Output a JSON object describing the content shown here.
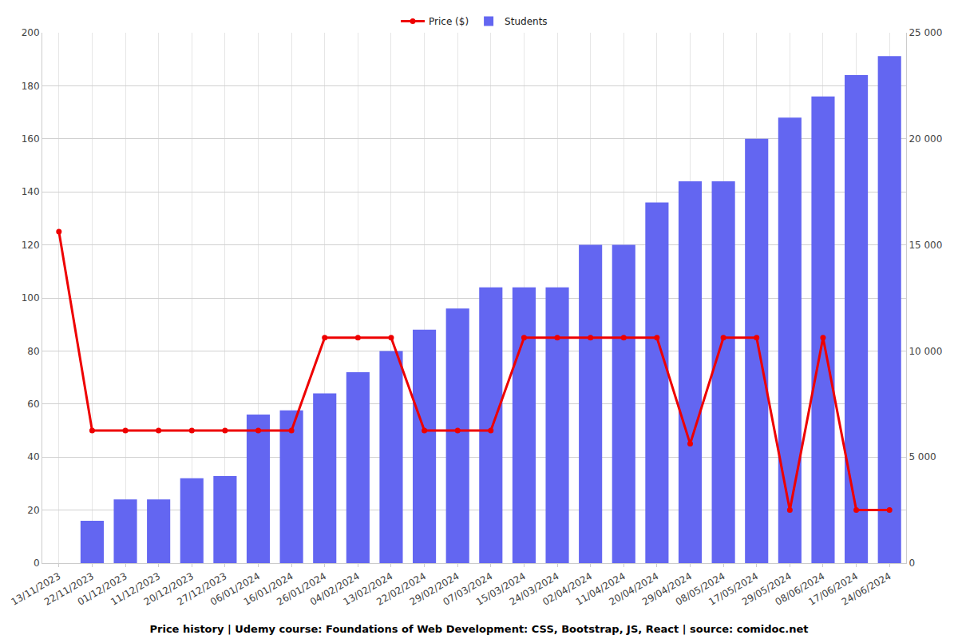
{
  "chart_data": {
    "type": "bar",
    "title": "Price history | Udemy course: Foundations of Web Development: CSS, Bootstrap, JS, React | source: comidoc.net",
    "categories": [
      "13/11/2023",
      "22/11/2023",
      "01/12/2023",
      "11/12/2023",
      "20/12/2023",
      "27/12/2023",
      "06/01/2024",
      "16/01/2024",
      "26/01/2024",
      "04/02/2024",
      "13/02/2024",
      "22/02/2024",
      "29/02/2024",
      "07/03/2024",
      "15/03/2024",
      "24/03/2024",
      "02/04/2024",
      "11/04/2024",
      "20/04/2024",
      "29/04/2024",
      "08/05/2024",
      "17/05/2024",
      "29/05/2024",
      "08/06/2024",
      "17/06/2024",
      "24/06/2024"
    ],
    "series": [
      {
        "name": "Price ($)",
        "type": "line",
        "color": "#ee0000",
        "marker": "circle",
        "values": [
          125,
          50,
          50,
          50,
          50,
          50,
          50,
          50,
          85,
          85,
          85,
          50,
          50,
          50,
          85,
          85,
          85,
          85,
          85,
          45,
          85,
          85,
          20,
          85,
          20,
          20
        ]
      },
      {
        "name": "Students",
        "type": "bar",
        "color": "#6366f1",
        "axis": "y2",
        "values": [
          null,
          2000,
          3000,
          3000,
          4000,
          4100,
          7000,
          7200,
          8000,
          9000,
          10000,
          11000,
          12000,
          13000,
          13000,
          13000,
          15000,
          15000,
          17000,
          18000,
          18000,
          20000,
          21000,
          22000,
          23000,
          23900
        ]
      }
    ],
    "ylim": [
      0,
      200
    ],
    "yticks": [
      0,
      20,
      40,
      60,
      80,
      100,
      120,
      140,
      160,
      180,
      200
    ],
    "y2lim": [
      0,
      25000
    ],
    "y2ticks": [
      0,
      {
        "value": 5000,
        "label": "5 000"
      },
      {
        "value": 10000,
        "label": "10 000"
      },
      {
        "value": 15000,
        "label": "15 000"
      },
      {
        "value": 20000,
        "label": "20 000"
      },
      {
        "value": 25000,
        "label": "25 000"
      }
    ],
    "grid": true,
    "legend": "top"
  }
}
